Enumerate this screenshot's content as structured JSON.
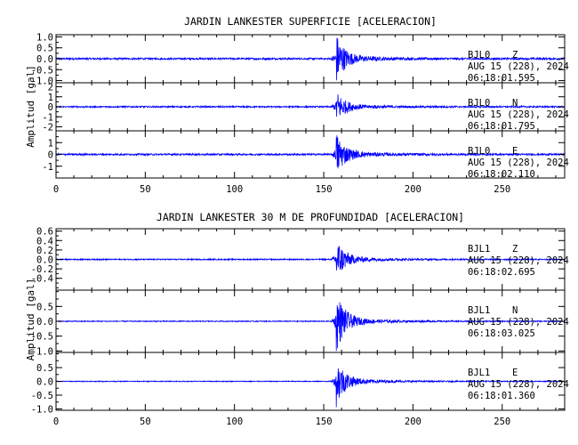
{
  "chart_data": [
    {
      "type": "line",
      "title": "JARDIN LANKESTER SUPERFICIE [ACELERACION]",
      "ylabel": "Amplitud [gal]",
      "xlim": [
        0,
        285
      ],
      "x_ticks": [
        0,
        50,
        100,
        150,
        200,
        250
      ],
      "trace_color": "#0000ff",
      "event_time_s": 157,
      "traces": [
        {
          "station": "BJL0",
          "component": "Z",
          "date": "AUG 15 (228), 2024",
          "time": "06:18:01.595",
          "ylim": [
            -1.1,
            1.1
          ],
          "y_ticks": [
            1.0,
            0.5,
            0.0,
            -0.5,
            -1.0
          ],
          "y_tick_labels": [
            "1.0",
            "0.5",
            "0.0",
            "-0.5",
            "-1.0"
          ],
          "noise_amp": 0.04,
          "peak_amp": 1.05
        },
        {
          "station": "BJL0",
          "component": "N",
          "date": "AUG 15 (228), 2024",
          "time": "06:18:01.795",
          "ylim": [
            -2.4,
            2.4
          ],
          "y_ticks": [
            2,
            1,
            0,
            -1,
            -2
          ],
          "y_tick_labels": [
            "2",
            "1",
            "0",
            "-1",
            "-2"
          ],
          "noise_amp": 0.07,
          "peak_amp": 1.5
        },
        {
          "station": "BJL0",
          "component": "E",
          "date": "AUG 15 (228), 2024",
          "time": "06:18:02.110",
          "ylim": [
            -2.0,
            2.0
          ],
          "y_ticks": [
            1,
            0,
            -1
          ],
          "y_tick_labels": [
            "1",
            "0",
            "-1"
          ],
          "noise_amp": 0.07,
          "peak_amp": 1.7
        }
      ]
    },
    {
      "type": "line",
      "title": "JARDIN LANKESTER 30 M DE PROFUNDIDAD [ACELERACION]",
      "ylabel": "Amplitud [gal]",
      "xlim": [
        0,
        285
      ],
      "x_ticks": [
        0,
        50,
        100,
        150,
        200,
        250
      ],
      "trace_color": "#0000ff",
      "event_time_s": 157,
      "traces": [
        {
          "station": "BJL1",
          "component": "Z",
          "date": "AUG 15 (228), 2024",
          "time": "06:18:02.695",
          "ylim": [
            -0.65,
            0.65
          ],
          "y_ticks": [
            0.6,
            0.4,
            0.2,
            0.0,
            -0.2,
            -0.4
          ],
          "y_tick_labels": [
            "0.6",
            "0.4",
            "0.2",
            "0.0",
            "-0.2",
            "-0.4"
          ],
          "noise_amp": 0.012,
          "peak_amp": 0.42
        },
        {
          "station": "BJL1",
          "component": "N",
          "date": "AUG 15 (228), 2024",
          "time": "06:18:03.025",
          "ylim": [
            -1.05,
            1.05
          ],
          "y_ticks": [
            0.5,
            0.0,
            -0.5,
            -1.0
          ],
          "y_tick_labels": [
            "0.5",
            "0.0",
            "-0.5",
            "-1.0"
          ],
          "noise_amp": 0.015,
          "peak_amp": 0.95
        },
        {
          "station": "BJL1",
          "component": "E",
          "date": "AUG 15 (228), 2024",
          "time": "06:18:01.360",
          "ylim": [
            -1.05,
            1.05
          ],
          "y_ticks": [
            0.5,
            0.0,
            -0.5,
            -1.0
          ],
          "y_tick_labels": [
            "0.5",
            "0.0",
            "-0.5",
            "-1.0"
          ],
          "noise_amp": 0.015,
          "peak_amp": 0.85
        }
      ]
    }
  ]
}
